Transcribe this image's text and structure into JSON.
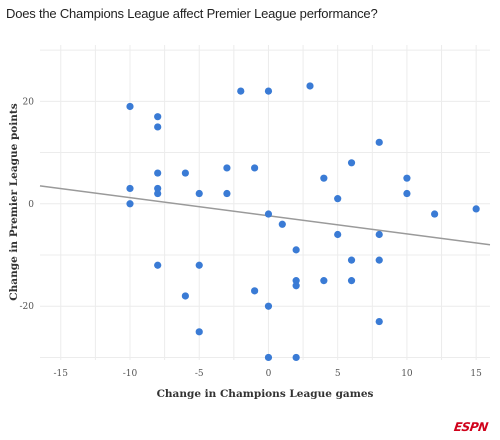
{
  "chart_data": {
    "type": "scatter",
    "title": "Does the Champions League affect Premier League performance?",
    "xlabel": "Change in Champions League games",
    "ylabel": "Change in Premier League points",
    "xlim": [
      -16.5,
      16
    ],
    "ylim": [
      -30.5,
      31
    ],
    "xticks": [
      -15,
      -10,
      -5,
      0,
      5,
      10,
      15
    ],
    "yticks": [
      -20,
      0,
      20
    ],
    "grid": true,
    "points": [
      {
        "x": -10,
        "y": 19
      },
      {
        "x": -10,
        "y": 3
      },
      {
        "x": -10,
        "y": 0
      },
      {
        "x": -8,
        "y": 17
      },
      {
        "x": -8,
        "y": 15
      },
      {
        "x": -8,
        "y": 6
      },
      {
        "x": -8,
        "y": 3
      },
      {
        "x": -8,
        "y": 2
      },
      {
        "x": -8,
        "y": -12
      },
      {
        "x": -6,
        "y": 6
      },
      {
        "x": -6,
        "y": -18
      },
      {
        "x": -5,
        "y": 2
      },
      {
        "x": -5,
        "y": -12
      },
      {
        "x": -5,
        "y": -25
      },
      {
        "x": -3,
        "y": 7
      },
      {
        "x": -3,
        "y": 2
      },
      {
        "x": -2,
        "y": 22
      },
      {
        "x": -1,
        "y": 7
      },
      {
        "x": -1,
        "y": -17
      },
      {
        "x": 0,
        "y": 22
      },
      {
        "x": 0,
        "y": -2
      },
      {
        "x": 0,
        "y": -20
      },
      {
        "x": 0,
        "y": -30
      },
      {
        "x": 1,
        "y": -4
      },
      {
        "x": 2,
        "y": -9
      },
      {
        "x": 2,
        "y": -15
      },
      {
        "x": 2,
        "y": -16
      },
      {
        "x": 2,
        "y": -30
      },
      {
        "x": 3,
        "y": 23
      },
      {
        "x": 4,
        "y": 5
      },
      {
        "x": 4,
        "y": -15
      },
      {
        "x": 5,
        "y": 1
      },
      {
        "x": 5,
        "y": -6
      },
      {
        "x": 6,
        "y": 8
      },
      {
        "x": 6,
        "y": -11
      },
      {
        "x": 6,
        "y": -15
      },
      {
        "x": 8,
        "y": 12
      },
      {
        "x": 8,
        "y": -6
      },
      {
        "x": 8,
        "y": -11
      },
      {
        "x": 8,
        "y": -23
      },
      {
        "x": 10,
        "y": 5
      },
      {
        "x": 10,
        "y": 2
      },
      {
        "x": 12,
        "y": -2
      },
      {
        "x": 15,
        "y": -1
      }
    ],
    "trendline": {
      "x": [
        -16.5,
        16
      ],
      "y": [
        3.5,
        -8
      ]
    },
    "point_color": "#3a7bd5",
    "trendline_color": "#9a9a9a",
    "grid_color": "#ececec"
  },
  "branding": {
    "logo": "ESPN",
    "logo_color": "#d0021b"
  }
}
